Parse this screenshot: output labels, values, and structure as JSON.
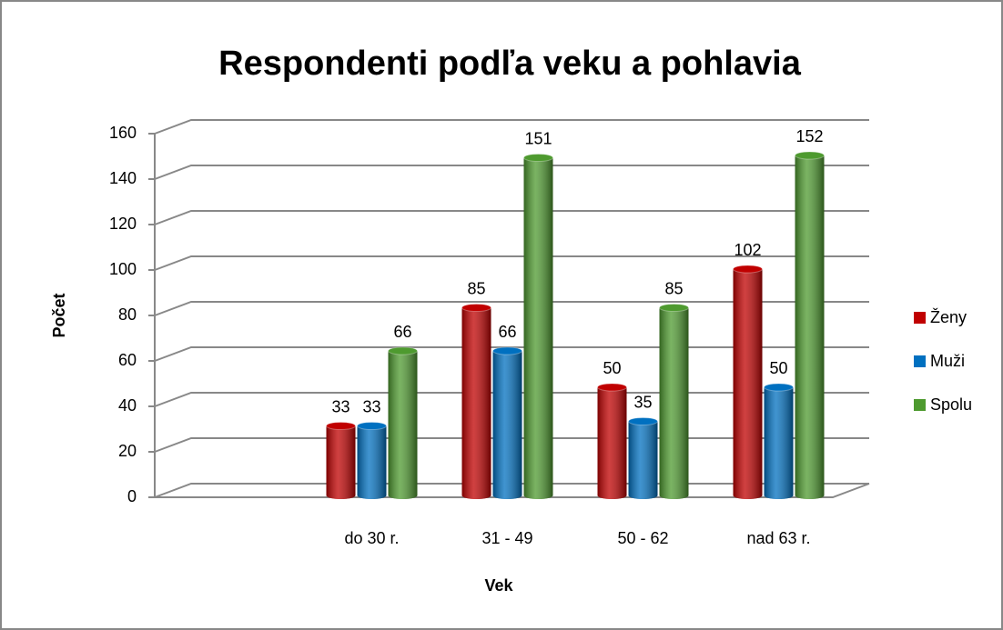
{
  "chart_data": {
    "type": "bar",
    "title": "Respondenti podľa veku a pohlavia",
    "x_label": "Vek",
    "y_label": "Počet",
    "categories": [
      null,
      "do 30 r.",
      "31 - 49",
      "50 - 62",
      "nad 63 r."
    ],
    "series": [
      {
        "name": "Ženy",
        "color": "#c00000",
        "values": [
          null,
          33,
          85,
          50,
          102
        ]
      },
      {
        "name": "Muži",
        "color": "#0070c0",
        "values": [
          null,
          33,
          66,
          35,
          50
        ]
      },
      {
        "name": "Spolu",
        "color": "#4e9a2f",
        "values": [
          null,
          66,
          151,
          85,
          152
        ]
      }
    ],
    "ylim": [
      0,
      160
    ],
    "yticks": [
      0,
      20,
      40,
      60,
      80,
      100,
      120,
      140,
      160
    ],
    "grid": true,
    "legend": "right"
  }
}
